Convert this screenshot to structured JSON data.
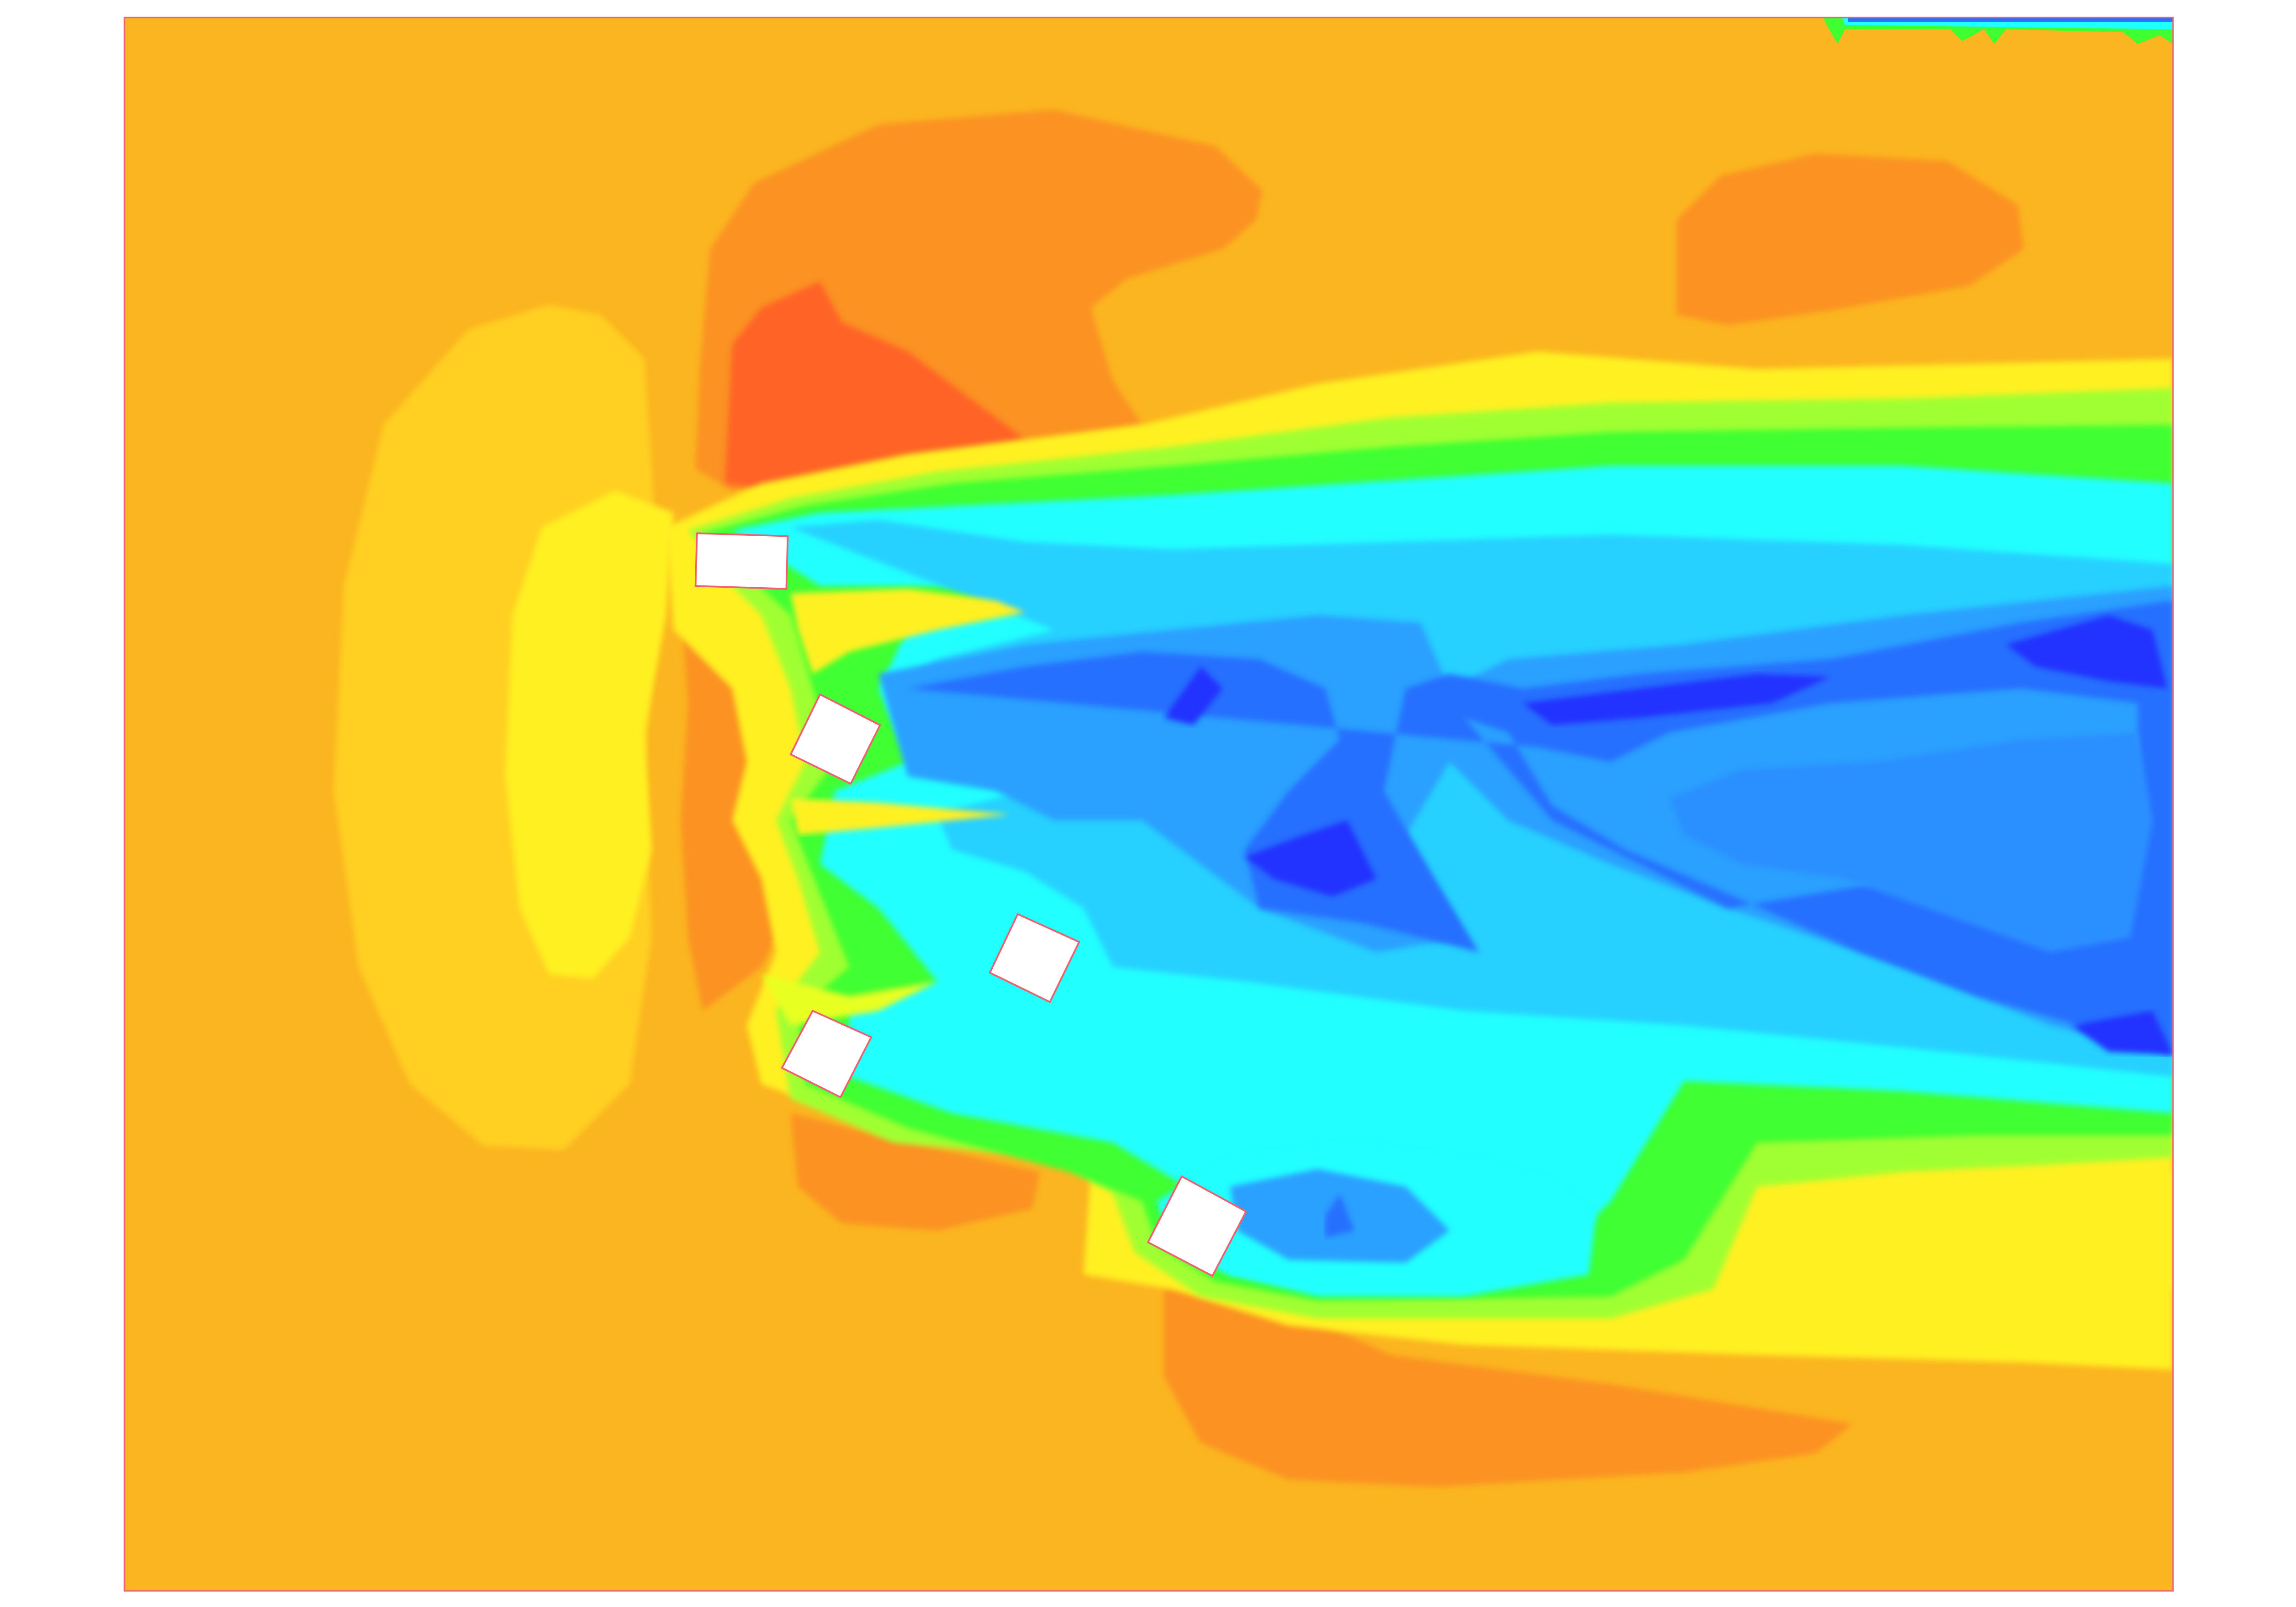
{
  "figure": {
    "kind": "contour-field",
    "colormap": "jet",
    "colors": {
      "background": "#ffffff",
      "frame": "#f06070",
      "far_field": "#fbb520",
      "orange": "#fb9222",
      "red_orange": "#ff6428",
      "gold": "#ffd020",
      "yellow": "#fff020",
      "yellow_green": "#d8ff20",
      "light_green": "#a0ff30",
      "green": "#40ff30",
      "aqua_green": "#20ffa0",
      "cyan": "#20ffff",
      "sky": "#28d0ff",
      "light_blue": "#2aa0ff",
      "blue": "#2870ff",
      "deep_blue": "#2030ff",
      "obstacle": "#ffffff",
      "obstacle_edge": "#f06070"
    },
    "obstacle_count": 5
  }
}
